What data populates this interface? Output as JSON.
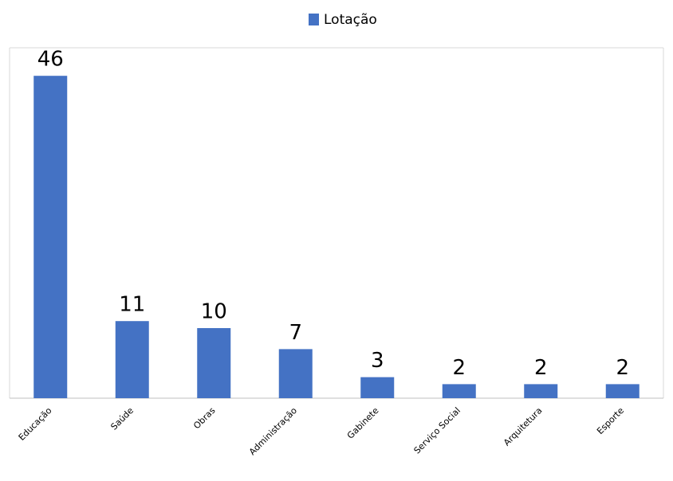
{
  "chart_data": {
    "type": "bar",
    "legend": "Lotação",
    "categories": [
      "Educação",
      "Saúde",
      "Obras",
      "Administração",
      "Gabinete",
      "Serviço Social",
      "Arquitetura",
      "Esporte"
    ],
    "values": [
      46,
      11,
      10,
      7,
      3,
      2,
      2,
      2
    ],
    "color": "#4472c4",
    "ylim": [
      0,
      50
    ]
  }
}
